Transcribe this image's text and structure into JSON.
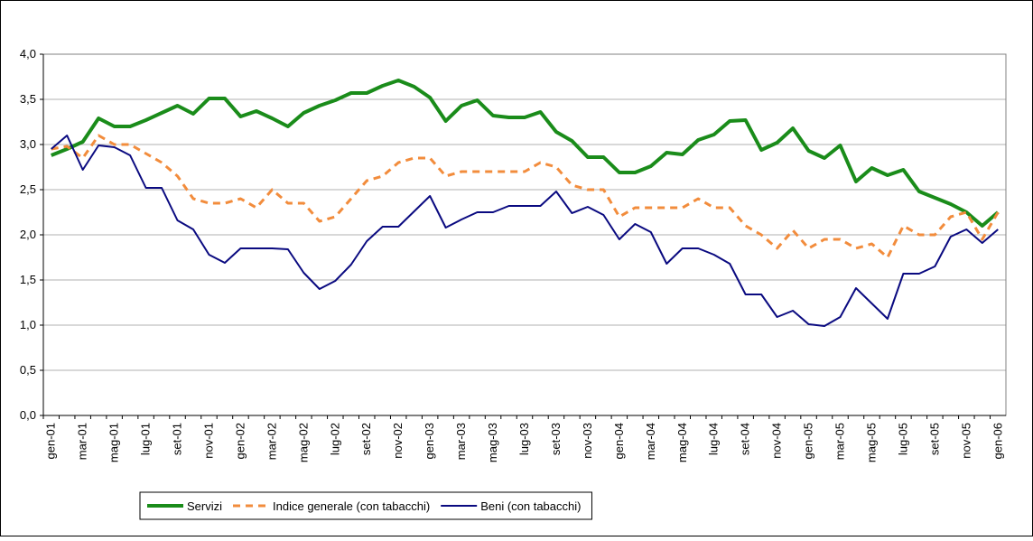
{
  "chart_data": {
    "type": "line",
    "categories": [
      "gen-01",
      null,
      "mar-01",
      null,
      "mag-01",
      null,
      "lug-01",
      null,
      "set-01",
      null,
      "nov-01",
      null,
      "gen-02",
      null,
      "mar-02",
      null,
      "mag-02",
      null,
      "lug-02",
      null,
      "set-02",
      null,
      "nov-02",
      null,
      "gen-03",
      null,
      "mar-03",
      null,
      "mag-03",
      null,
      "lug-03",
      null,
      "set-03",
      null,
      "nov-03",
      null,
      "gen-04",
      null,
      "mar-04",
      null,
      "mag-04",
      null,
      "lug-04",
      null,
      "set-04",
      null,
      "nov-04",
      null,
      "gen-05",
      null,
      "mar-05",
      null,
      "mag-05",
      null,
      "lug-05",
      null,
      "set-05",
      null,
      "nov-05",
      null,
      "gen-06"
    ],
    "series": [
      {
        "name": "Servizi",
        "color": "#1a8c1a",
        "dashed": false,
        "width": 4,
        "values": [
          2.88,
          2.95,
          3.03,
          3.29,
          3.2,
          3.2,
          3.27,
          3.35,
          3.43,
          3.34,
          3.51,
          3.51,
          3.31,
          3.37,
          3.29,
          3.2,
          3.35,
          3.43,
          3.49,
          3.57,
          3.57,
          3.65,
          3.71,
          3.64,
          3.52,
          3.26,
          3.43,
          3.49,
          3.32,
          3.3,
          3.3,
          3.36,
          3.14,
          3.04,
          2.86,
          2.86,
          2.69,
          2.69,
          2.76,
          2.91,
          2.89,
          3.05,
          3.11,
          3.26,
          3.27,
          2.94,
          3.02,
          3.18,
          2.93,
          2.85,
          2.99,
          2.59,
          2.74,
          2.66,
          2.72,
          2.48,
          2.41,
          2.34,
          2.25,
          2.1,
          2.25
        ]
      },
      {
        "name": "Indice generale (con tabacchi)",
        "color": "#f28c3c",
        "dashed": true,
        "width": 3,
        "values": [
          2.95,
          2.98,
          2.85,
          3.1,
          3.0,
          3.0,
          2.9,
          2.8,
          2.65,
          2.4,
          2.35,
          2.35,
          2.4,
          2.3,
          2.5,
          2.35,
          2.35,
          2.15,
          2.2,
          2.4,
          2.6,
          2.65,
          2.8,
          2.85,
          2.85,
          2.65,
          2.7,
          2.7,
          2.7,
          2.7,
          2.7,
          2.8,
          2.75,
          2.55,
          2.5,
          2.5,
          2.2,
          2.3,
          2.3,
          2.3,
          2.3,
          2.4,
          2.3,
          2.3,
          2.1,
          2.0,
          1.85,
          2.05,
          1.85,
          1.95,
          1.95,
          1.85,
          1.9,
          1.75,
          2.1,
          2.0,
          2.0,
          2.2,
          2.25,
          1.95,
          2.25
        ]
      },
      {
        "name": "Beni (con tabacchi)",
        "color": "#0a0a80",
        "dashed": false,
        "width": 2,
        "values": [
          2.95,
          3.1,
          2.72,
          2.99,
          2.97,
          2.88,
          2.52,
          2.52,
          2.16,
          2.06,
          1.78,
          1.69,
          1.85,
          1.85,
          1.85,
          1.84,
          1.58,
          1.4,
          1.49,
          1.67,
          1.93,
          2.09,
          2.09,
          2.26,
          2.43,
          2.08,
          2.17,
          2.25,
          2.25,
          2.32,
          2.32,
          2.32,
          2.48,
          2.24,
          2.31,
          2.22,
          1.95,
          2.12,
          2.03,
          1.68,
          1.85,
          1.85,
          1.78,
          1.68,
          1.34,
          1.34,
          1.09,
          1.16,
          1.01,
          0.99,
          1.09,
          1.41,
          1.24,
          1.07,
          1.57,
          1.57,
          1.65,
          1.98,
          2.06,
          1.91,
          2.06
        ]
      }
    ],
    "ylim": [
      0,
      4
    ],
    "yticks": [
      {
        "value": 0,
        "label": "0,0"
      },
      {
        "value": 0.5,
        "label": "0,5"
      },
      {
        "value": 1,
        "label": "1,0"
      },
      {
        "value": 1.5,
        "label": "1,5"
      },
      {
        "value": 2,
        "label": "2,0"
      },
      {
        "value": 2.5,
        "label": "2,5"
      },
      {
        "value": 3,
        "label": "3,0"
      },
      {
        "value": 3.5,
        "label": "3,5"
      },
      {
        "value": 4,
        "label": "4,0"
      }
    ],
    "grid": true,
    "legend": "bottom"
  }
}
